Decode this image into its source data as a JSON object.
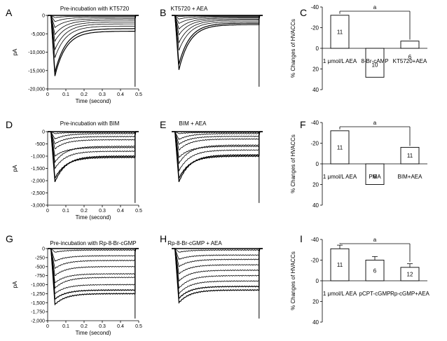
{
  "chart_data": [
    {
      "panel": "A",
      "type": "line",
      "title": "Pre-incubation with KT5720",
      "xlabel": "Time (second)",
      "ylabel": "pA",
      "xlim": [
        0,
        0.5
      ],
      "ylim": [
        -20000,
        0
      ],
      "xticks": [
        "0",
        "0.1",
        "0.2",
        "0.3",
        "0.4",
        "0.5"
      ],
      "yticks": [
        "0",
        "-5,000",
        "-10,000",
        "-15,000",
        "-20,000"
      ],
      "series": [
        {
          "peak": -16500,
          "end": -4300
        },
        {
          "peak": -15500,
          "end": -3600
        },
        {
          "peak": -11500,
          "end": -2900
        },
        {
          "peak": -9300,
          "end": -2300
        },
        {
          "peak": -7000,
          "end": -1800
        },
        {
          "peak": -5200,
          "end": -1300
        },
        {
          "peak": -3300,
          "end": -900
        },
        {
          "peak": -1700,
          "end": -500
        },
        {
          "peak": -600,
          "end": -200
        }
      ]
    },
    {
      "panel": "B",
      "type": "line",
      "title": "KT5720 + AEA",
      "xlim": [
        0,
        0.5
      ],
      "ylim": [
        -20000,
        0
      ],
      "series": [
        {
          "peak": -14800,
          "end": -2500
        },
        {
          "peak": -13300,
          "end": -2100
        },
        {
          "peak": -9500,
          "end": -1700
        },
        {
          "peak": -7400,
          "end": -1300
        },
        {
          "peak": -5300,
          "end": -1000
        },
        {
          "peak": -3700,
          "end": -700
        },
        {
          "peak": -2200,
          "end": -450
        },
        {
          "peak": -1000,
          "end": -250
        },
        {
          "peak": -300,
          "end": -100
        }
      ]
    },
    {
      "panel": "C",
      "type": "bar",
      "ylabel": "% Changes of HVACCs",
      "ylim": [
        -40,
        40
      ],
      "yticks": [
        "-40",
        "-20",
        "0",
        "20",
        "40"
      ],
      "categories": [
        "1 μmol/L AEA",
        "8-Br-cAMP",
        "KT5720+AEA"
      ],
      "values": [
        32,
        -28,
        7
      ],
      "n": [
        "11",
        "10",
        "6"
      ],
      "errors": [
        0,
        0,
        0
      ],
      "annotation": "a",
      "bracket": [
        0,
        2
      ]
    },
    {
      "panel": "D",
      "type": "line",
      "title": "Pre-incubation with BIM",
      "xlabel": "Time (second)",
      "ylabel": "pA",
      "xlim": [
        0,
        0.5
      ],
      "ylim": [
        -3000,
        0
      ],
      "xticks": [
        "0",
        "0.1",
        "0.2",
        "0.3",
        "0.4",
        "0.5"
      ],
      "yticks": [
        "0",
        "-500",
        "-1,000",
        "-1,500",
        "-2,000",
        "-2,500",
        "-3,000"
      ],
      "series": [
        {
          "peak": -2050,
          "end": -1000
        },
        {
          "peak": -1900,
          "end": -1050
        },
        {
          "peak": -1500,
          "end": -800
        },
        {
          "peak": -1250,
          "end": -600
        },
        {
          "peak": -1000,
          "end": -650
        },
        {
          "peak": -700,
          "end": -330
        },
        {
          "peak": -500,
          "end": -200
        },
        {
          "peak": -300,
          "end": -80
        },
        {
          "peak": -80,
          "end": -30
        }
      ]
    },
    {
      "panel": "E",
      "type": "line",
      "title": "BIM + AEA",
      "xlim": [
        0,
        0.5
      ],
      "ylim": [
        -3000,
        0
      ],
      "series": [
        {
          "peak": -2050,
          "end": -950
        },
        {
          "peak": -1900,
          "end": -1000
        },
        {
          "peak": -1600,
          "end": -750
        },
        {
          "peak": -1300,
          "end": -550
        },
        {
          "peak": -1050,
          "end": -600
        },
        {
          "peak": -750,
          "end": -300
        },
        {
          "peak": -520,
          "end": -190
        },
        {
          "peak": -320,
          "end": -80
        },
        {
          "peak": -80,
          "end": -30
        }
      ]
    },
    {
      "panel": "F",
      "type": "bar",
      "ylabel": "% Changes of HVACCs",
      "ylim": [
        -40,
        40
      ],
      "yticks": [
        "-40",
        "-20",
        "0",
        "20",
        "40"
      ],
      "categories": [
        "1 μmol/L AEA",
        "PMA",
        "BIM+AEA"
      ],
      "values": [
        32,
        -20,
        16
      ],
      "n": [
        "11",
        "6",
        "11"
      ],
      "errors": [
        0,
        0,
        0
      ],
      "annotation": "a",
      "bracket": [
        0,
        2
      ]
    },
    {
      "panel": "G",
      "type": "line",
      "title": "Pre-incubation with Rp-8-Br-cGMP",
      "xlabel": "Time (second)",
      "ylabel": "pA",
      "xlim": [
        0,
        0.5
      ],
      "ylim": [
        -2000,
        0
      ],
      "xticks": [
        "0",
        "0.1",
        "0.2",
        "0.3",
        "0.4",
        "0.5"
      ],
      "yticks": [
        "0",
        "-250",
        "-500",
        "-750",
        "-1,000",
        "-1,250",
        "-1,500",
        "-1,750",
        "-2,000"
      ],
      "series": [
        {
          "peak": -1550,
          "end": -1250
        },
        {
          "peak": -1400,
          "end": -1150
        },
        {
          "peak": -1250,
          "end": -1000
        },
        {
          "peak": -1100,
          "end": -800
        },
        {
          "peak": -950,
          "end": -700
        },
        {
          "peak": -750,
          "end": -500
        },
        {
          "peak": -550,
          "end": -330
        },
        {
          "peak": -350,
          "end": -200
        },
        {
          "peak": -100,
          "end": -40
        }
      ]
    },
    {
      "panel": "H",
      "type": "line",
      "title": "Rp-8-Br-cGMP + AEA",
      "xlim": [
        0,
        0.5
      ],
      "ylim": [
        -2000,
        0
      ],
      "series": [
        {
          "peak": -1500,
          "end": -1150
        },
        {
          "peak": -1380,
          "end": -1050
        },
        {
          "peak": -1250,
          "end": -900
        },
        {
          "peak": -1100,
          "end": -750
        },
        {
          "peak": -900,
          "end": -600
        },
        {
          "peak": -700,
          "end": -450
        },
        {
          "peak": -500,
          "end": -300
        },
        {
          "peak": -300,
          "end": -180
        },
        {
          "peak": -100,
          "end": -40
        }
      ]
    },
    {
      "panel": "I",
      "type": "bar",
      "ylabel": "% Changes of HVACCs",
      "ylim": [
        -40,
        40
      ],
      "yticks": [
        "-40",
        "-20",
        "0",
        "20",
        "40"
      ],
      "categories": [
        "1 μmol/L AEA",
        "pCPT-cGMP",
        "Rp-cGMP+AEA"
      ],
      "values": [
        31,
        20,
        13
      ],
      "n": [
        "11",
        "6",
        "12"
      ],
      "errors": [
        3.5,
        3.5,
        3.5
      ],
      "annotation": "a",
      "bracket": [
        0,
        2
      ]
    }
  ]
}
